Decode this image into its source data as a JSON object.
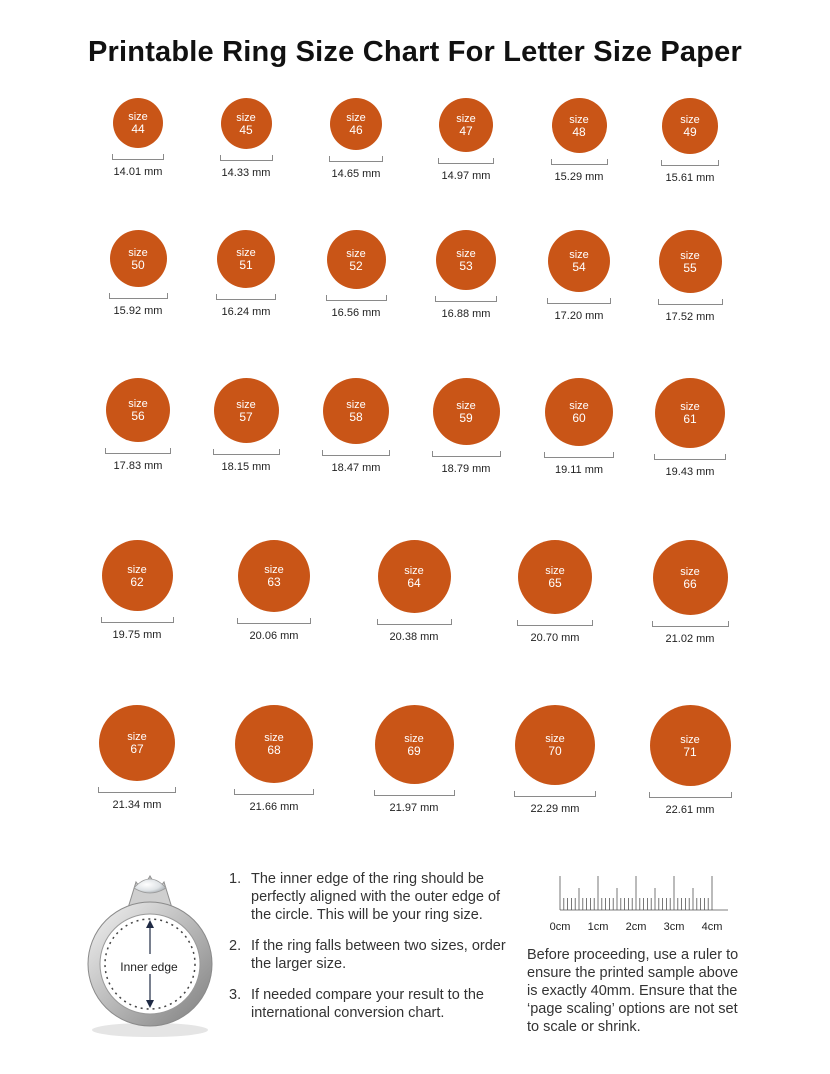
{
  "title": "Printable Ring Size Chart For Letter Size Paper",
  "size_label": "size",
  "rows": [
    {
      "sizes": [
        {
          "size": "44",
          "mm": "14.01 mm"
        },
        {
          "size": "45",
          "mm": "14.33 mm"
        },
        {
          "size": "46",
          "mm": "14.65 mm"
        },
        {
          "size": "47",
          "mm": "14.97 mm"
        },
        {
          "size": "48",
          "mm": "15.29 mm"
        },
        {
          "size": "49",
          "mm": "15.61 mm"
        }
      ]
    },
    {
      "sizes": [
        {
          "size": "50",
          "mm": "15.92 mm"
        },
        {
          "size": "51",
          "mm": "16.24 mm"
        },
        {
          "size": "52",
          "mm": "16.56 mm"
        },
        {
          "size": "53",
          "mm": "16.88 mm"
        },
        {
          "size": "54",
          "mm": "17.20 mm"
        },
        {
          "size": "55",
          "mm": "17.52 mm"
        }
      ]
    },
    {
      "sizes": [
        {
          "size": "56",
          "mm": "17.83 mm"
        },
        {
          "size": "57",
          "mm": "18.15 mm"
        },
        {
          "size": "58",
          "mm": "18.47 mm"
        },
        {
          "size": "59",
          "mm": "18.79 mm"
        },
        {
          "size": "60",
          "mm": "19.11 mm"
        },
        {
          "size": "61",
          "mm": "19.43 mm"
        }
      ]
    },
    {
      "sizes": [
        {
          "size": "62",
          "mm": "19.75 mm"
        },
        {
          "size": "63",
          "mm": "20.06 mm"
        },
        {
          "size": "64",
          "mm": "20.38 mm"
        },
        {
          "size": "65",
          "mm": "20.70 mm"
        },
        {
          "size": "66",
          "mm": "21.02 mm"
        }
      ]
    },
    {
      "sizes": [
        {
          "size": "67",
          "mm": "21.34 mm"
        },
        {
          "size": "68",
          "mm": "21.66 mm"
        },
        {
          "size": "69",
          "mm": "21.97 mm"
        },
        {
          "size": "70",
          "mm": "22.29 mm"
        },
        {
          "size": "71",
          "mm": "22.61 mm"
        }
      ]
    }
  ],
  "ring_illustration": {
    "label": "Inner edge",
    "icon": "ring-icon"
  },
  "instructions": [
    {
      "num": "1.",
      "text": "The inner edge of the ring should be perfectly aligned with the outer edge of the circle. This will be your ring size."
    },
    {
      "num": "2.",
      "text": "If the ring falls between two sizes, order the larger size."
    },
    {
      "num": "3.",
      "text": "If needed compare your result to the international conversion chart."
    }
  ],
  "ruler": {
    "labels": [
      "0cm",
      "1cm",
      "2cm",
      "3cm",
      "4cm"
    ]
  },
  "ruler_note": "Before proceeding, use a ruler to ensure the printed sample above is exactly 40mm. Ensure that the ‘page scaling’ options are not set to scale or shrink.",
  "colors": {
    "circle": "#c95517",
    "text": "#222222"
  }
}
